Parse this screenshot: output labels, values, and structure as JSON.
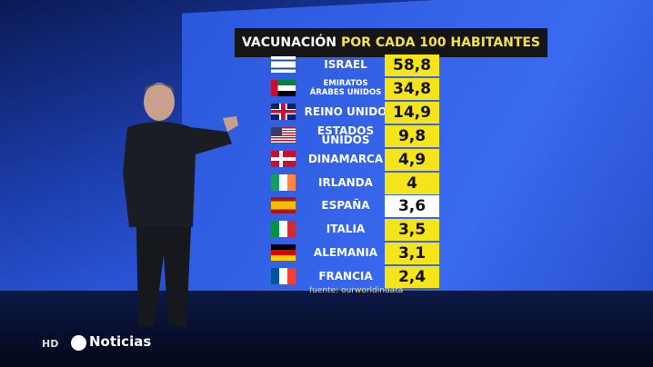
{
  "header": {
    "title": "VACUNACIÓN",
    "subtitle": "POR CADA 100 HABITANTES"
  },
  "table": {
    "rows": [
      {
        "country": [
          "ISRAEL"
        ],
        "value": "58,8"
      },
      {
        "country": [
          "EMIRATOS",
          "ÁRABES UNIDOS"
        ],
        "value": "34,8"
      },
      {
        "country": [
          "REINO UNIDO"
        ],
        "value": "14,9"
      },
      {
        "country": [
          "ESTADOS UNIDOS"
        ],
        "value": "9,8"
      },
      {
        "country": [
          "DINAMARCA"
        ],
        "value": "4,9"
      },
      {
        "country": [
          "IRLANDA"
        ],
        "value": "4"
      },
      {
        "country": [
          "ESPAÑA"
        ],
        "value": "3,6"
      },
      {
        "country": [
          "ITALIA"
        ],
        "value": "3,5"
      },
      {
        "country": [
          "ALEMANIA"
        ],
        "value": "3,1"
      },
      {
        "country": [
          "FRANCIA"
        ],
        "value": "2,4"
      }
    ]
  },
  "source": "fuente: ourworldindata",
  "footer": {
    "quality": "HD",
    "channel": "Noticias"
  }
}
